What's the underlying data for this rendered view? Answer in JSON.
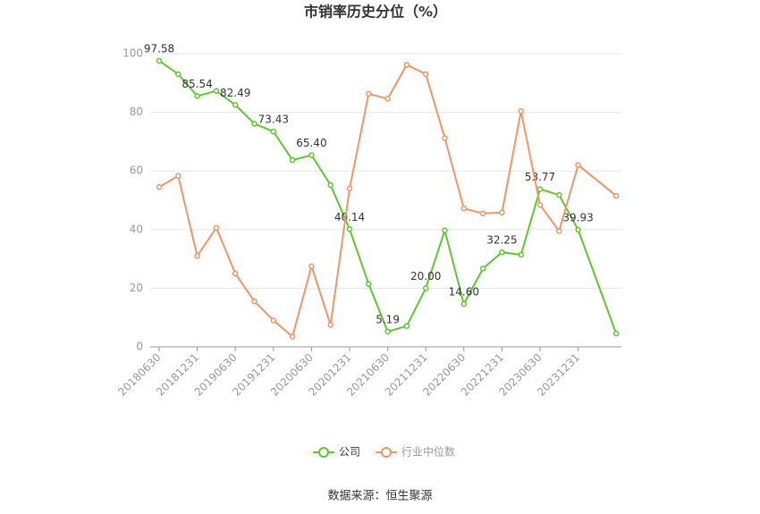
{
  "chart_data": {
    "type": "line",
    "title": "市销率历史分位（%）",
    "source": "数据来源：恒生聚源",
    "categories": [
      "20180630",
      null,
      "20181231",
      null,
      "20190630",
      null,
      "20191231",
      null,
      "20200630",
      null,
      "20201231",
      null,
      "20210630",
      null,
      "20211231",
      null,
      "20220630",
      null,
      "20221231",
      null,
      "20230630",
      null,
      "20231231",
      null,
      null
    ],
    "series": [
      {
        "name": "公司",
        "color": "#5ec72e",
        "values": [
          97.58,
          93,
          85.54,
          87.3,
          82.49,
          76.1,
          73.43,
          63.7,
          65.4,
          55.2,
          40.14,
          21.4,
          5.19,
          7.1,
          20,
          39.7,
          14.6,
          26.7,
          32.25,
          31.4,
          53.77,
          51.8,
          39.93,
          null,
          4.5
        ],
        "value_labels": [
          "97.58",
          null,
          "85.54",
          null,
          "82.49",
          null,
          "73.43",
          null,
          "65.40",
          null,
          "40.14",
          null,
          "5.19",
          null,
          "20.00",
          null,
          "14.60",
          null,
          "32.25",
          null,
          "53.77",
          null,
          "39.93",
          null,
          null
        ]
      },
      {
        "name": "行业中位数",
        "color": "#f29566",
        "values": [
          54.5,
          58.3,
          31,
          40.6,
          25,
          15.5,
          9,
          3.5,
          27.5,
          7.5,
          54,
          86.3,
          84.6,
          96.2,
          93,
          71.2,
          47.2,
          45.5,
          45.8,
          80.4,
          48.4,
          39.5,
          62,
          null,
          51.5
        ]
      }
    ],
    "connect_nulls": true,
    "ylim": [
      0,
      100
    ],
    "yticks": [
      0,
      20,
      40,
      60,
      80,
      100
    ],
    "grid": true
  }
}
